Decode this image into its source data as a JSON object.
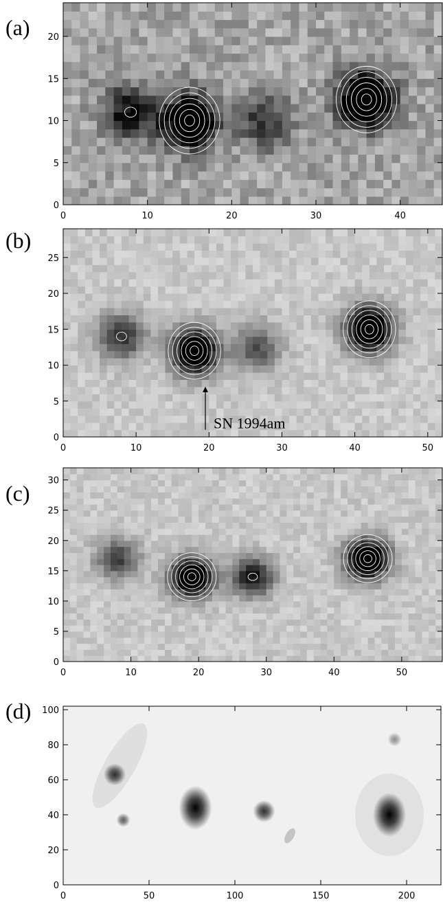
{
  "figure": {
    "panels": [
      {
        "label": "(a)",
        "x_ticks": [
          "0",
          "10",
          "20",
          "30",
          "40"
        ],
        "y_ticks": [
          "0",
          "5",
          "10",
          "15",
          "20"
        ],
        "xlim": [
          0,
          45
        ],
        "ylim": [
          0,
          24
        ],
        "style": "pixel-noisy",
        "sources": [
          {
            "x": 8,
            "y": 11,
            "strength": 0.55
          },
          {
            "x": 15,
            "y": 10,
            "strength": 0.95
          },
          {
            "x": 24,
            "y": 10,
            "strength": 0.4
          },
          {
            "x": 36,
            "y": 12.5,
            "strength": 1.0
          }
        ]
      },
      {
        "label": "(b)",
        "x_ticks": [
          "0",
          "10",
          "20",
          "30",
          "40",
          "50"
        ],
        "y_ticks": [
          "0",
          "5",
          "10",
          "15",
          "20",
          "25"
        ],
        "xlim": [
          0,
          52
        ],
        "ylim": [
          0,
          29
        ],
        "style": "pixel",
        "annotation": "SN 1994am",
        "arrow": {
          "x": 19.5,
          "y_from": 1,
          "y_to": 7
        },
        "sources": [
          {
            "x": 8,
            "y": 14,
            "strength": 0.5
          },
          {
            "x": 18,
            "y": 12,
            "strength": 0.95
          },
          {
            "x": 26.5,
            "y": 12.5,
            "strength": 0.4
          },
          {
            "x": 42,
            "y": 15,
            "strength": 1.0
          }
        ]
      },
      {
        "label": "(c)",
        "x_ticks": [
          "0",
          "10",
          "20",
          "30",
          "40",
          "50"
        ],
        "y_ticks": [
          "0",
          "5",
          "10",
          "15",
          "20",
          "25",
          "30"
        ],
        "xlim": [
          0,
          56
        ],
        "ylim": [
          0,
          32
        ],
        "style": "pixel",
        "sources": [
          {
            "x": 8,
            "y": 17,
            "strength": 0.45
          },
          {
            "x": 19,
            "y": 14,
            "strength": 0.95
          },
          {
            "x": 28,
            "y": 14,
            "strength": 0.6
          },
          {
            "x": 45,
            "y": 17,
            "strength": 1.0
          }
        ]
      },
      {
        "label": "(d)",
        "x_ticks": [
          "0",
          "50",
          "100",
          "150",
          "200"
        ],
        "y_ticks": [
          "0",
          "20",
          "40",
          "60",
          "80",
          "100"
        ],
        "xlim": [
          0,
          220
        ],
        "ylim": [
          0,
          102
        ],
        "style": "smooth",
        "sources": [
          {
            "x": 30,
            "y": 63,
            "strength": 0.8
          },
          {
            "x": 35,
            "y": 37,
            "strength": 0.6
          },
          {
            "x": 77,
            "y": 44,
            "strength": 1.0
          },
          {
            "x": 117,
            "y": 42,
            "strength": 0.8
          },
          {
            "x": 193,
            "y": 83,
            "strength": 0.4
          },
          {
            "x": 190,
            "y": 40,
            "strength": 1.0
          }
        ]
      }
    ]
  }
}
